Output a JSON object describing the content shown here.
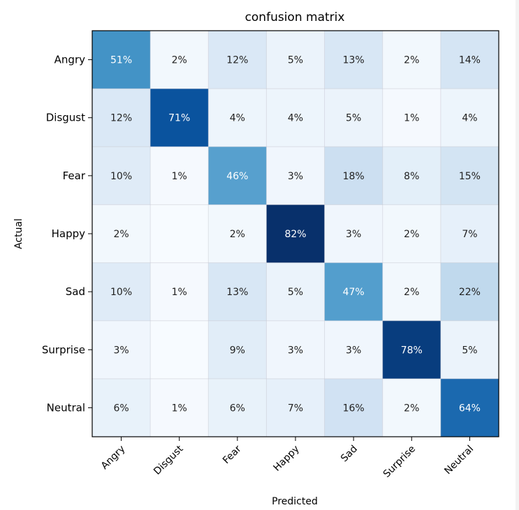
{
  "chart_data": {
    "type": "heatmap",
    "title": "confusion matrix",
    "xlabel": "Predicted",
    "ylabel": "Actual",
    "x_categories": [
      "Angry",
      "Disgust",
      "Fear",
      "Happy",
      "Sad",
      "Surprise",
      "Neutral"
    ],
    "y_categories": [
      "Angry",
      "Disgust",
      "Fear",
      "Happy",
      "Sad",
      "Surprise",
      "Neutral"
    ],
    "values": [
      [
        51,
        2,
        12,
        5,
        13,
        2,
        14
      ],
      [
        12,
        71,
        4,
        4,
        5,
        1,
        4
      ],
      [
        10,
        1,
        46,
        3,
        18,
        8,
        15
      ],
      [
        2,
        0,
        2,
        82,
        3,
        2,
        7
      ],
      [
        10,
        1,
        13,
        5,
        47,
        2,
        22
      ],
      [
        3,
        0,
        9,
        3,
        3,
        78,
        5
      ],
      [
        6,
        1,
        6,
        7,
        16,
        2,
        64
      ]
    ],
    "labels": [
      [
        "51%",
        "2%",
        "12%",
        "5%",
        "13%",
        "2%",
        "14%"
      ],
      [
        "12%",
        "71%",
        "4%",
        "4%",
        "5%",
        "1%",
        "4%"
      ],
      [
        "10%",
        "1%",
        "46%",
        "3%",
        "18%",
        "8%",
        "15%"
      ],
      [
        "2%",
        "",
        "2%",
        "82%",
        "3%",
        "2%",
        "7%"
      ],
      [
        "10%",
        "1%",
        "13%",
        "5%",
        "47%",
        "2%",
        "22%"
      ],
      [
        "3%",
        "",
        "9%",
        "3%",
        "3%",
        "78%",
        "5%"
      ],
      [
        "6%",
        "1%",
        "6%",
        "7%",
        "16%",
        "2%",
        "64%"
      ]
    ],
    "colormap": "Blues",
    "value_range": [
      0,
      82
    ],
    "grid": false
  }
}
